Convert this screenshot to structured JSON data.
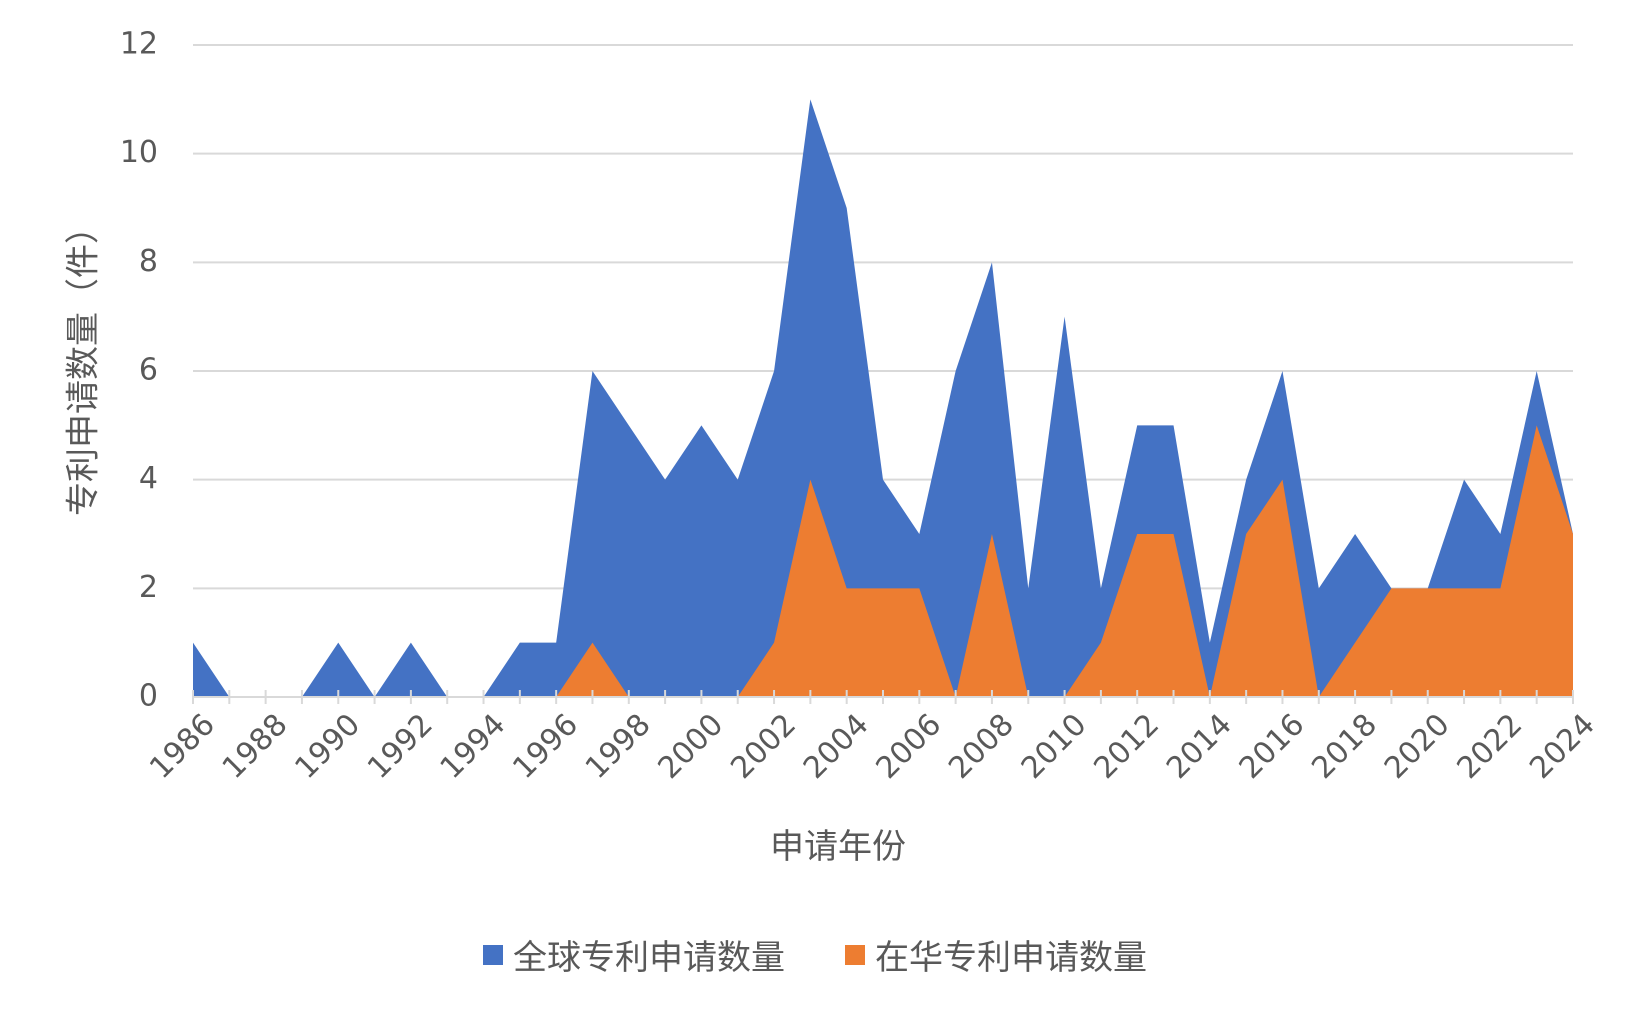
{
  "chart_data": {
    "type": "area",
    "xlabel": "申请年份",
    "ylabel": "专利申请数量（件）",
    "ylim": [
      0,
      12
    ],
    "yticks": [
      0,
      2,
      4,
      6,
      8,
      10,
      12
    ],
    "grid": true,
    "legend_position": "bottom",
    "x": [
      1986,
      1987,
      1988,
      1989,
      1990,
      1991,
      1992,
      1993,
      1994,
      1995,
      1996,
      1997,
      1998,
      1999,
      2000,
      2001,
      2002,
      2003,
      2004,
      2005,
      2006,
      2007,
      2008,
      2009,
      2010,
      2011,
      2012,
      2013,
      2014,
      2015,
      2016,
      2017,
      2018,
      2019,
      2020,
      2021,
      2022,
      2023,
      2024
    ],
    "xtick_labels": [
      "1986",
      "1988",
      "1990",
      "1992",
      "1994",
      "1996",
      "1998",
      "2000",
      "2002",
      "2004",
      "2006",
      "2008",
      "2010",
      "2012",
      "2014",
      "2016",
      "2018",
      "2020",
      "2022",
      "2024"
    ],
    "series": [
      {
        "name": "全球专利申请数量",
        "color": "#4472C4",
        "values": [
          1,
          0,
          0,
          0,
          1,
          0,
          1,
          0,
          0,
          1,
          1,
          6,
          5,
          4,
          5,
          4,
          6,
          11,
          9,
          4,
          3,
          6,
          8,
          2,
          7,
          2,
          5,
          5,
          1,
          4,
          6,
          2,
          3,
          2,
          2,
          4,
          3,
          6,
          3
        ]
      },
      {
        "name": "在华专利申请数量",
        "color": "#ED7D31",
        "values": [
          0,
          0,
          0,
          0,
          0,
          0,
          0,
          0,
          0,
          0,
          0,
          1,
          0,
          0,
          0,
          0,
          1,
          4,
          2,
          2,
          2,
          0,
          3,
          0,
          0,
          1,
          3,
          3,
          0,
          3,
          4,
          0,
          1,
          2,
          2,
          2,
          2,
          5,
          3
        ]
      }
    ]
  }
}
